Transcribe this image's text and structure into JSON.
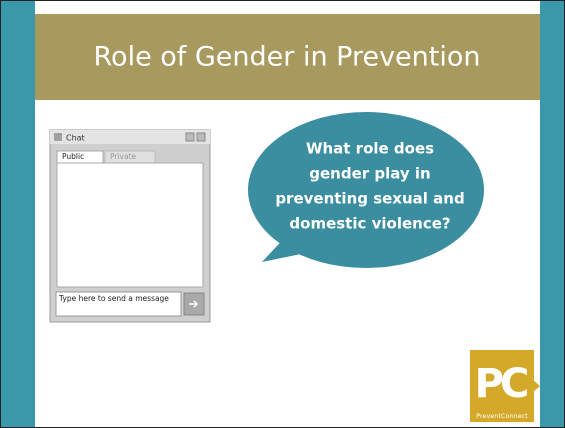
{
  "slide": {
    "title": "Role of Gender in Prevention",
    "chat": {
      "title": "Chat",
      "tabs": [
        "Public",
        "Private"
      ],
      "input_placeholder": "Type here to send a message"
    },
    "bubble": {
      "lines": [
        "What role does",
        "gender play in",
        "preventing sexual and",
        "domestic violence?"
      ]
    },
    "logo": {
      "letters": "PC",
      "name": "PreventConnect"
    }
  }
}
